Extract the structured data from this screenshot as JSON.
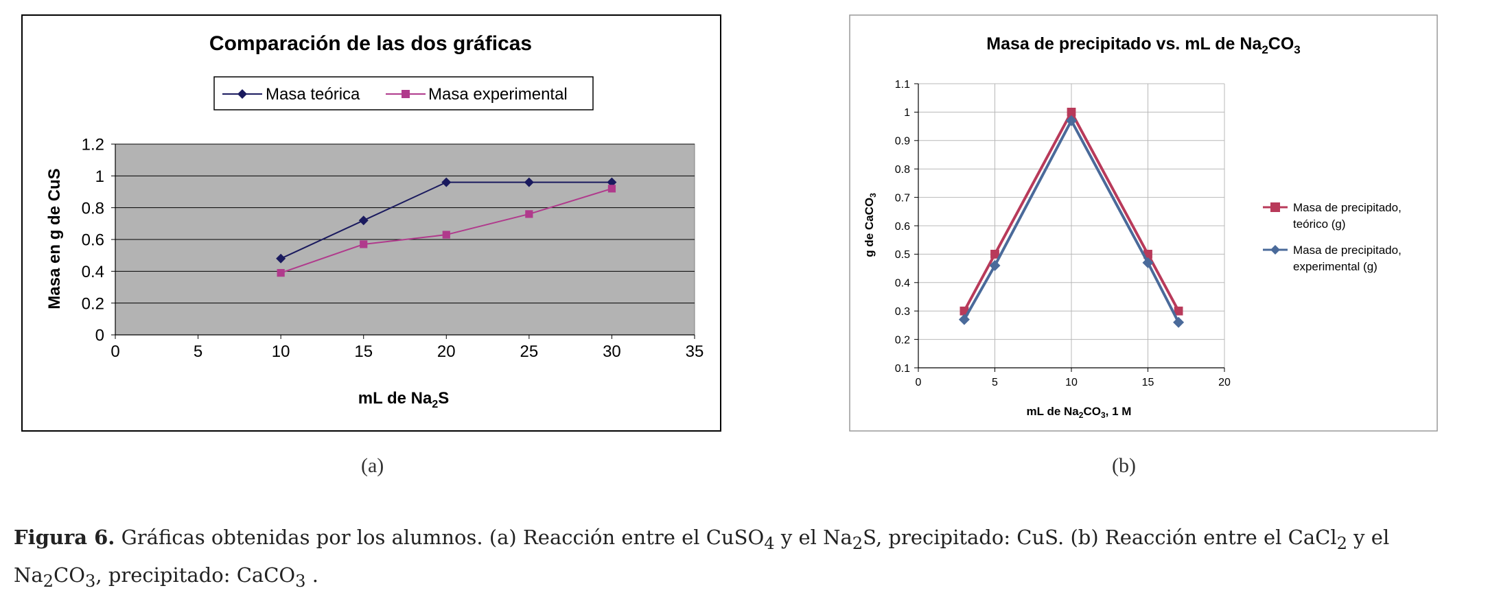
{
  "chart_data": [
    {
      "id": "a",
      "type": "line",
      "title": "Comparación de las dos gráficas",
      "xlabel_main": "mL de Na",
      "xlabel_sub": "2",
      "xlabel_tail": "S",
      "ylabel": "Masa en g de CuS",
      "xlim": [
        0,
        35
      ],
      "ylim": [
        0,
        1.2
      ],
      "x_ticks": [
        "0",
        "5",
        "10",
        "15",
        "20",
        "25",
        "30",
        "35"
      ],
      "y_ticks": [
        "0",
        "0.2",
        "0.4",
        "0.6",
        "0.8",
        "1",
        "1.2"
      ],
      "grid": true,
      "legend_position": "top",
      "series": [
        {
          "name": "Masa teórica",
          "color": "#1a1a5e",
          "marker": "diamond",
          "x": [
            10,
            15,
            20,
            25,
            30
          ],
          "y": [
            0.48,
            0.72,
            0.96,
            0.96,
            0.96
          ]
        },
        {
          "name": "Masa experimental",
          "color": "#b03a8c",
          "marker": "square",
          "x": [
            10,
            15,
            20,
            25,
            30
          ],
          "y": [
            0.39,
            0.57,
            0.63,
            0.76,
            0.92
          ]
        }
      ]
    },
    {
      "id": "b",
      "type": "line",
      "title_main": "Masa de precipitado vs. mL de Na",
      "title_sub1": "2",
      "title_mid": "CO",
      "title_sub2": "3",
      "xlabel_main": "mL  de Na",
      "xlabel_sub1": "2",
      "xlabel_mid": "CO",
      "xlabel_sub2": "3",
      "xlabel_tail": ", 1 M",
      "ylabel_main": "g  de CaCO",
      "ylabel_sub": "3",
      "xlim": [
        0,
        20
      ],
      "ylim": [
        0.1,
        1.1
      ],
      "x_ticks": [
        "0",
        "5",
        "10",
        "15",
        "20"
      ],
      "y_ticks": [
        "0.1",
        "0.2",
        "0.3",
        "0.4",
        "0.5",
        "0.6",
        "0.7",
        "0.8",
        "0.9",
        "1",
        "1.1"
      ],
      "grid": true,
      "legend_position": "right",
      "series": [
        {
          "name_line1": "Masa de precipitado,",
          "name_line2": "teórico (g)",
          "color": "#b83a5a",
          "marker": "square",
          "x": [
            3,
            5,
            10,
            15,
            17
          ],
          "y": [
            0.3,
            0.5,
            1.0,
            0.5,
            0.3
          ]
        },
        {
          "name_line1": "Masa de precipitado,",
          "name_line2": "experimental (g)",
          "color": "#4a6a9a",
          "marker": "diamond",
          "x": [
            3,
            5,
            10,
            15,
            17
          ],
          "y": [
            0.27,
            0.46,
            0.97,
            0.47,
            0.26
          ]
        }
      ]
    }
  ],
  "panels": {
    "a": "(a)",
    "b": "(b)"
  },
  "caption": {
    "label": "Figura 6.",
    "p1": " Gráficas obtenidas por los alumnos. (a) Reacción entre el CuSO",
    "s1": "4",
    "p2": " y el Na",
    "s2": "2",
    "p3": "S, precipitado: CuS. (b) Reacción entre el CaCl",
    "s3": "2",
    "p4": " y el Na",
    "s4": "2",
    "p5": "CO",
    "s5": "3",
    "p6": ", precipitado: CaCO",
    "s6": "3",
    "p7": " ."
  }
}
